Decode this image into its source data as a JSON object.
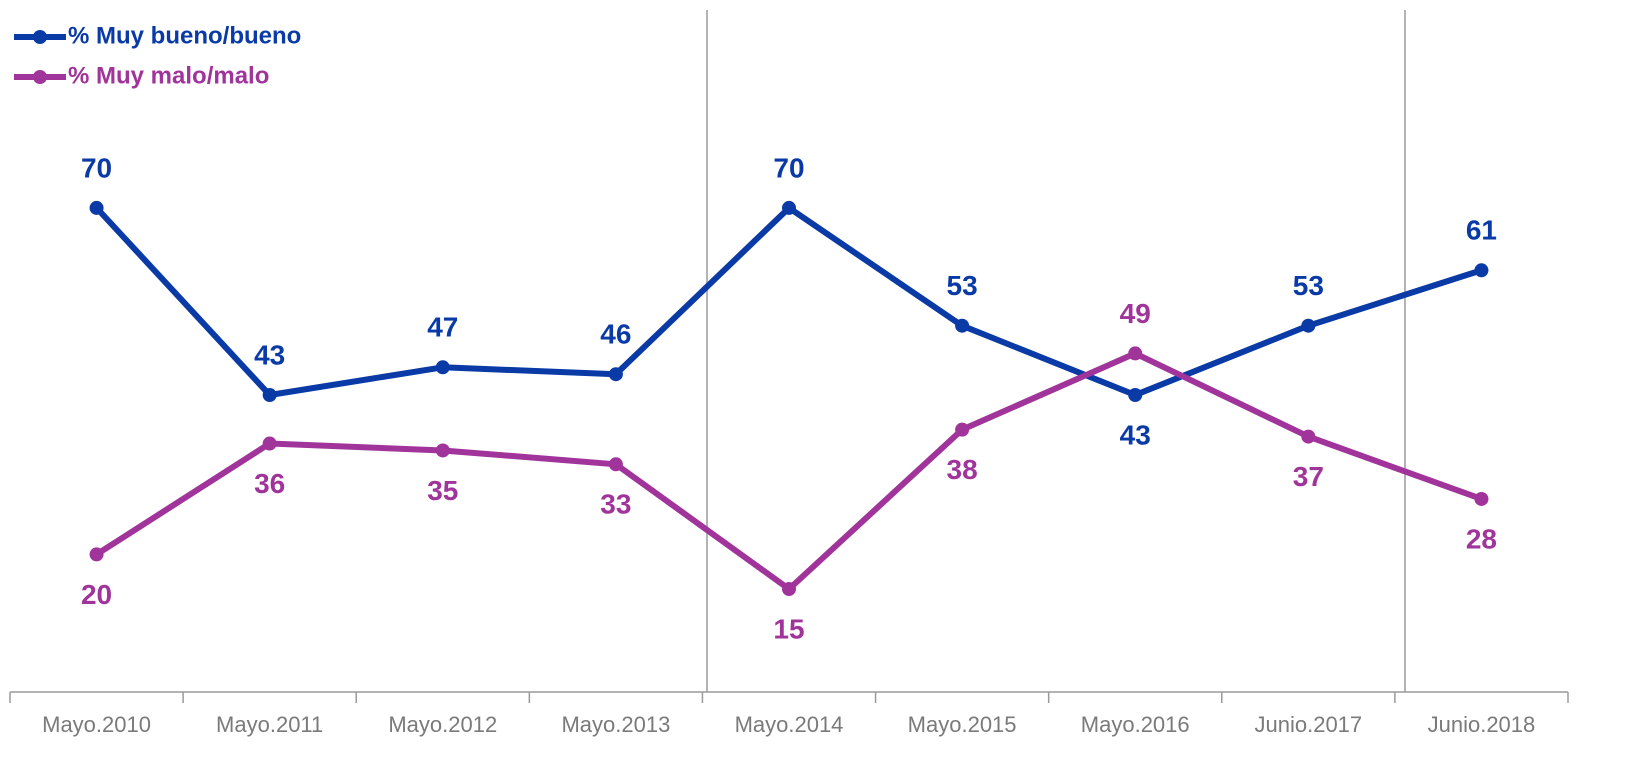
{
  "chart_data": {
    "type": "line",
    "categories": [
      "Mayo.2010",
      "Mayo.2011",
      "Mayo.2012",
      "Mayo.2013",
      "Mayo.2014",
      "Mayo.2015",
      "Mayo.2016",
      "Junio.2017",
      "Junio.2018"
    ],
    "series": [
      {
        "name": "% Muy bueno/bueno",
        "color": "#0a3aa6",
        "values": [
          70,
          43,
          47,
          46,
          70,
          53,
          43,
          53,
          61
        ]
      },
      {
        "name": "% Muy malo/malo",
        "color": "#a0349a",
        "values": [
          20,
          36,
          35,
          33,
          15,
          38,
          49,
          37,
          28
        ]
      }
    ],
    "ylim": [
      0,
      100
    ],
    "legend": "top-left"
  }
}
